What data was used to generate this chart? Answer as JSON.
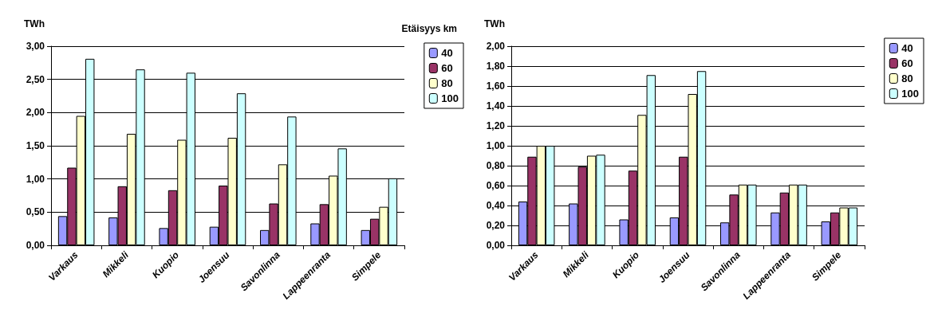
{
  "chart_data": [
    {
      "type": "bar",
      "ylabel": "TWh",
      "legend_title": "Etäisyys km",
      "categories": [
        "Varkaus",
        "Mikkeli",
        "Kuopio",
        "Joensuu",
        "Savonlinna",
        "Lappeenranta",
        "Simpele"
      ],
      "series": [
        {
          "name": "40",
          "color": "#9999ff",
          "values": [
            0.44,
            0.42,
            0.26,
            0.28,
            0.23,
            0.33,
            0.23
          ]
        },
        {
          "name": "60",
          "color": "#993366",
          "values": [
            1.17,
            0.89,
            0.83,
            0.9,
            0.63,
            0.62,
            0.4
          ]
        },
        {
          "name": "80",
          "color": "#ffffcc",
          "values": [
            1.95,
            1.68,
            1.59,
            1.62,
            1.22,
            1.05,
            0.58
          ]
        },
        {
          "name": "100",
          "color": "#ccffff",
          "values": [
            2.81,
            2.65,
            2.6,
            2.29,
            1.94,
            1.46,
            1.01
          ]
        }
      ],
      "ylim": [
        0,
        3
      ],
      "yticks": [
        {
          "value": 0,
          "label": "0,00"
        },
        {
          "value": 0.5,
          "label": "0,50"
        },
        {
          "value": 1,
          "label": "1,00"
        },
        {
          "value": 1.5,
          "label": "1,50"
        },
        {
          "value": 2,
          "label": "2,00"
        },
        {
          "value": 2.5,
          "label": "2,50"
        },
        {
          "value": 3,
          "label": "3,00"
        }
      ],
      "grid": "y",
      "legend": "top right"
    },
    {
      "type": "bar",
      "ylabel": "TWh",
      "categories": [
        "Varkaus",
        "Mikkeli",
        "Kuopio",
        "Joensuu",
        "Savonlinna",
        "Lappeenranta",
        "Simpele"
      ],
      "series": [
        {
          "name": "40",
          "color": "#9999ff",
          "values": [
            0.44,
            0.42,
            0.26,
            0.28,
            0.23,
            0.33,
            0.24
          ]
        },
        {
          "name": "60",
          "color": "#993366",
          "values": [
            0.89,
            0.79,
            0.75,
            0.89,
            0.51,
            0.53,
            0.33
          ]
        },
        {
          "name": "80",
          "color": "#ffffcc",
          "values": [
            1.0,
            0.9,
            1.31,
            1.52,
            0.61,
            0.61,
            0.38
          ]
        },
        {
          "name": "100",
          "color": "#ccffff",
          "values": [
            1.0,
            0.91,
            1.71,
            1.75,
            0.61,
            0.61,
            0.38
          ]
        }
      ],
      "ylim": [
        0,
        2
      ],
      "yticks": [
        {
          "value": 0,
          "label": "0,00"
        },
        {
          "value": 0.2,
          "label": "0,20"
        },
        {
          "value": 0.4,
          "label": "0,40"
        },
        {
          "value": 0.6,
          "label": "0,60"
        },
        {
          "value": 0.8,
          "label": "0,80"
        },
        {
          "value": 1,
          "label": "1,00"
        },
        {
          "value": 1.2,
          "label": "1,20"
        },
        {
          "value": 1.4,
          "label": "1,40"
        },
        {
          "value": 1.6,
          "label": "1,60"
        },
        {
          "value": 1.8,
          "label": "1,80"
        },
        {
          "value": 2,
          "label": "2,00"
        }
      ],
      "grid": "y",
      "legend": "top right"
    }
  ]
}
